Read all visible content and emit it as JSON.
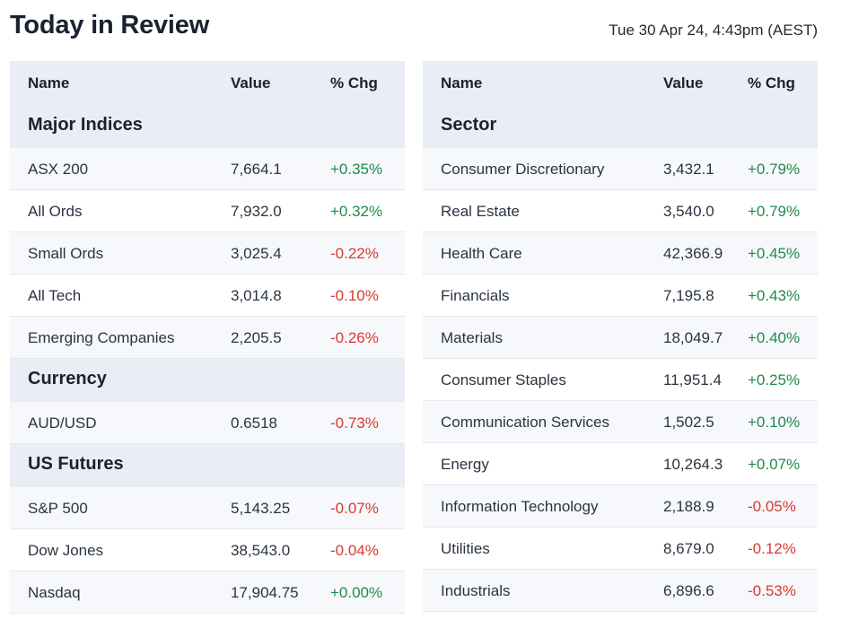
{
  "page": {
    "title": "Today in Review",
    "timestamp": "Tue 30 Apr 24, 4:43pm (AEST)"
  },
  "colors": {
    "positive": "#1f8a4c",
    "negative": "#d83a2e",
    "header_bg": "#e9eef5"
  },
  "left_table": {
    "headers": {
      "name": "Name",
      "value": "Value",
      "change": "% Chg"
    },
    "sections": [
      {
        "title": "Major Indices",
        "rows": [
          {
            "name": "ASX 200",
            "value": "7,664.1",
            "change": "+0.35%",
            "dir": "pos"
          },
          {
            "name": "All Ords",
            "value": "7,932.0",
            "change": "+0.32%",
            "dir": "pos"
          },
          {
            "name": "Small Ords",
            "value": "3,025.4",
            "change": "-0.22%",
            "dir": "neg"
          },
          {
            "name": "All Tech",
            "value": "3,014.8",
            "change": "-0.10%",
            "dir": "neg"
          },
          {
            "name": "Emerging Companies",
            "value": "2,205.5",
            "change": "-0.26%",
            "dir": "neg"
          }
        ]
      },
      {
        "title": "Currency",
        "rows": [
          {
            "name": "AUD/USD",
            "value": "0.6518",
            "change": "-0.73%",
            "dir": "neg"
          }
        ]
      },
      {
        "title": "US Futures",
        "rows": [
          {
            "name": "S&P 500",
            "value": "5,143.25",
            "change": "-0.07%",
            "dir": "neg"
          },
          {
            "name": "Dow Jones",
            "value": "38,543.0",
            "change": "-0.04%",
            "dir": "neg"
          },
          {
            "name": "Nasdaq",
            "value": "17,904.75",
            "change": "+0.00%",
            "dir": "pos"
          }
        ]
      }
    ]
  },
  "right_table": {
    "headers": {
      "name": "Name",
      "value": "Value",
      "change": "% Chg"
    },
    "sections": [
      {
        "title": "Sector",
        "rows": [
          {
            "name": "Consumer Discretionary",
            "value": "3,432.1",
            "change": "+0.79%",
            "dir": "pos"
          },
          {
            "name": "Real Estate",
            "value": "3,540.0",
            "change": "+0.79%",
            "dir": "pos"
          },
          {
            "name": "Health Care",
            "value": "42,366.9",
            "change": "+0.45%",
            "dir": "pos"
          },
          {
            "name": "Financials",
            "value": "7,195.8",
            "change": "+0.43%",
            "dir": "pos"
          },
          {
            "name": "Materials",
            "value": "18,049.7",
            "change": "+0.40%",
            "dir": "pos"
          },
          {
            "name": "Consumer Staples",
            "value": "11,951.4",
            "change": "+0.25%",
            "dir": "pos"
          },
          {
            "name": "Communication Services",
            "value": "1,502.5",
            "change": "+0.10%",
            "dir": "pos"
          },
          {
            "name": "Energy",
            "value": "10,264.3",
            "change": "+0.07%",
            "dir": "pos"
          },
          {
            "name": "Information Technology",
            "value": "2,188.9",
            "change": "-0.05%",
            "dir": "neg"
          },
          {
            "name": "Utilities",
            "value": "8,679.0",
            "change": "-0.12%",
            "dir": "neg"
          },
          {
            "name": "Industrials",
            "value": "6,896.6",
            "change": "-0.53%",
            "dir": "neg"
          }
        ]
      }
    ]
  }
}
